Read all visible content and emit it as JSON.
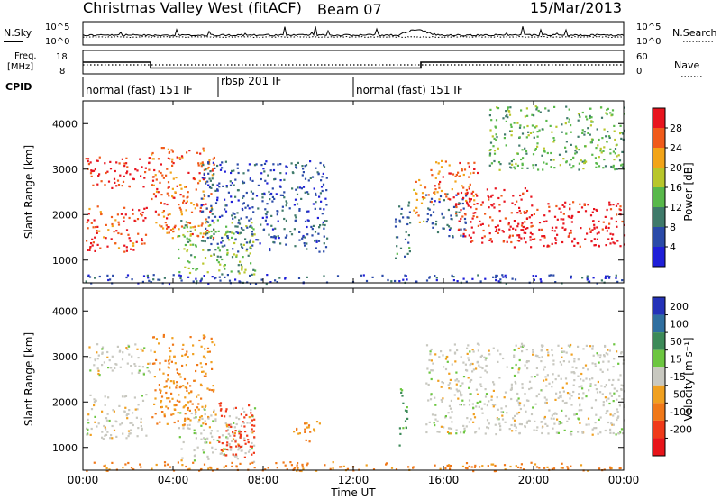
{
  "header": {
    "station": "Christmas Valley West (fitACF)",
    "beam": "Beam 07",
    "date": "15/Mar/2013"
  },
  "strips": {
    "nsky_label": "N.Sky",
    "nsearch_label": "N.Search",
    "count_tick_top": "10^5",
    "count_tick_bottom": "10^0",
    "freq_label_line1": "Freq.",
    "freq_label_line2": "[MHz]",
    "freq_ticks": [
      "18",
      "8"
    ],
    "nave_label": "Nave",
    "nave_ticks": [
      "60",
      "0"
    ],
    "cpid_label": "CPID",
    "cpid_segments": [
      {
        "label": "normal (fast) 151 IF",
        "start_hour": 0,
        "end_hour": 6
      },
      {
        "label": "rbsp 201 IF",
        "start_hour": 6,
        "end_hour": 12
      },
      {
        "label": "normal (fast) 151 IF",
        "start_hour": 12,
        "end_hour": 24
      }
    ],
    "freq_profile": [
      [
        0,
        13
      ],
      [
        3,
        13
      ],
      [
        3,
        10.5
      ],
      [
        15,
        10.5
      ],
      [
        15,
        13
      ],
      [
        24,
        13
      ]
    ]
  },
  "panels": {
    "ylabel": "Slant Range [km]",
    "xlabel": "Time UT",
    "ytick_labels": [
      "1000",
      "2000",
      "3000",
      "4000"
    ],
    "xtick_labels": [
      "00:00",
      "04:00",
      "08:00",
      "12:00",
      "16:00",
      "20:00",
      "00:00"
    ]
  },
  "colorbars": {
    "power": {
      "title": "Power [dB]",
      "ticks": [
        "4",
        "8",
        "12",
        "16",
        "20",
        "24",
        "28"
      ],
      "colors": [
        "#1f1fd8",
        "#2a4aa8",
        "#3f7a6a",
        "#58b84a",
        "#b8c62a",
        "#f2a418",
        "#f05a1a",
        "#e8141e"
      ]
    },
    "velocity": {
      "title": "Velocity [m s⁻¹]",
      "ticks": [
        "200",
        "100",
        "50",
        "15",
        "-15",
        "-50",
        "-100",
        "-200"
      ],
      "colors": [
        "#2432b8",
        "#2f6fa0",
        "#3c8a58",
        "#6cc640",
        "#c8c8c0",
        "#f0a020",
        "#f07818",
        "#f03a1a",
        "#e8141a"
      ]
    }
  },
  "chart_data": [
    {
      "type": "line",
      "title": "Christmas Valley West (fitACF) Beam 07 15/Mar/2013",
      "series": [
        {
          "name": "N.Sky"
        },
        {
          "name": "N.Search"
        }
      ],
      "xlim": [
        0,
        24
      ],
      "yscale": "log",
      "ylim": [
        1,
        100000
      ]
    },
    {
      "type": "line",
      "series": [
        {
          "name": "Freq. [MHz]"
        },
        {
          "name": "Nave"
        }
      ],
      "xlim": [
        0,
        24
      ],
      "ylim": [
        8,
        18
      ],
      "y2lim": [
        0,
        60
      ]
    },
    {
      "type": "heatmap",
      "quantity": "Power [dB]",
      "x_unit": "hours UT",
      "y_unit": "km",
      "xlim": [
        0,
        24
      ],
      "ylim": [
        500,
        4500
      ],
      "clim": [
        0,
        30
      ],
      "blobs": [
        {
          "x0": 0.1,
          "x1": 3.0,
          "y0": 2600,
          "y1": 3300,
          "value": 27
        },
        {
          "x0": 0.1,
          "x1": 2.8,
          "y0": 1200,
          "y1": 2200,
          "value": 26
        },
        {
          "x0": 3.0,
          "x1": 5.8,
          "y0": 1500,
          "y1": 3500,
          "value": 24
        },
        {
          "x0": 4.2,
          "x1": 7.6,
          "y0": 700,
          "y1": 1900,
          "value": 14
        },
        {
          "x0": 5.2,
          "x1": 10.8,
          "y0": 1200,
          "y1": 3200,
          "value": 6
        },
        {
          "x0": 13.8,
          "x1": 14.5,
          "y0": 1000,
          "y1": 2300,
          "value": 8
        },
        {
          "x0": 14.6,
          "x1": 15.2,
          "y0": 1800,
          "y1": 2800,
          "value": 20
        },
        {
          "x0": 15.2,
          "x1": 17.0,
          "y0": 1500,
          "y1": 2500,
          "value": 7
        },
        {
          "x0": 15.3,
          "x1": 17.5,
          "y0": 2300,
          "y1": 3200,
          "value": 24
        },
        {
          "x0": 16.5,
          "x1": 20.0,
          "y0": 1400,
          "y1": 2600,
          "value": 28
        },
        {
          "x0": 19.0,
          "x1": 24.0,
          "y0": 1300,
          "y1": 2300,
          "value": 29
        },
        {
          "x0": 18.0,
          "x1": 24.0,
          "y0": 3000,
          "y1": 4400,
          "value": 13
        },
        {
          "x0": 0.0,
          "x1": 24.0,
          "y0": 500,
          "y1": 700,
          "value": 5
        }
      ]
    },
    {
      "type": "heatmap",
      "quantity": "Velocity [m s⁻¹]",
      "x_unit": "hours UT",
      "y_unit": "km",
      "xlim": [
        0,
        24
      ],
      "ylim": [
        500,
        4500
      ],
      "clim": [
        -200,
        200
      ],
      "blobs": [
        {
          "x0": 0.1,
          "x1": 3.0,
          "y0": 2600,
          "y1": 3300,
          "value": 0
        },
        {
          "x0": 0.1,
          "x1": 2.8,
          "y0": 1200,
          "y1": 2200,
          "value": 0
        },
        {
          "x0": 3.0,
          "x1": 5.8,
          "y0": 1500,
          "y1": 3500,
          "value": -50
        },
        {
          "x0": 4.2,
          "x1": 7.6,
          "y0": 700,
          "y1": 1900,
          "value": 0
        },
        {
          "x0": 6.0,
          "x1": 7.6,
          "y0": 800,
          "y1": 2000,
          "value": -180
        },
        {
          "x0": 9.3,
          "x1": 10.5,
          "y0": 1100,
          "y1": 1600,
          "value": -40
        },
        {
          "x0": 14.0,
          "x1": 14.4,
          "y0": 1000,
          "y1": 2300,
          "value": 60
        },
        {
          "x0": 15.2,
          "x1": 24.0,
          "y0": 1300,
          "y1": 3300,
          "value": 0
        },
        {
          "x0": 0.0,
          "x1": 24.0,
          "y0": 500,
          "y1": 700,
          "value": -60
        }
      ]
    }
  ]
}
